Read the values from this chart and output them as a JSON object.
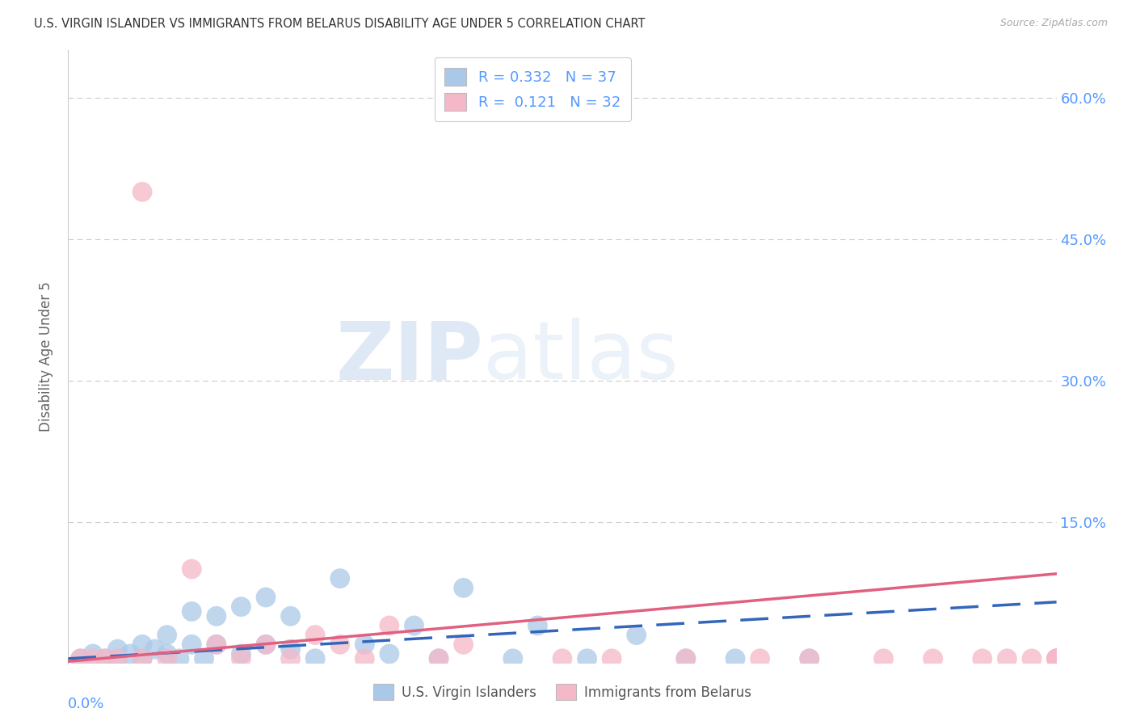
{
  "title": "U.S. VIRGIN ISLANDER VS IMMIGRANTS FROM BELARUS DISABILITY AGE UNDER 5 CORRELATION CHART",
  "source": "Source: ZipAtlas.com",
  "ylabel": "Disability Age Under 5",
  "xlim": [
    0.0,
    0.04
  ],
  "ylim": [
    0.0,
    0.65
  ],
  "ytick_vals": [
    0.0,
    0.15,
    0.3,
    0.45,
    0.6
  ],
  "right_ytick_labels": [
    "",
    "15.0%",
    "30.0%",
    "45.0%",
    "60.0%"
  ],
  "watermark_zip": "ZIP",
  "watermark_atlas": "atlas",
  "legend_blue_R": "0.332",
  "legend_blue_N": "37",
  "legend_pink_R": "0.121",
  "legend_pink_N": "32",
  "blue_color": "#aac9e8",
  "pink_color": "#f5b8c8",
  "blue_line_color": "#3366bb",
  "pink_line_color": "#e06080",
  "right_axis_color": "#5599ff",
  "grid_color": "#cccccc",
  "background_color": "#ffffff",
  "title_fontsize": 10.5,
  "source_fontsize": 9,
  "blue_scatter_x": [
    0.0005,
    0.001,
    0.0015,
    0.002,
    0.002,
    0.0025,
    0.003,
    0.003,
    0.0035,
    0.004,
    0.004,
    0.0045,
    0.005,
    0.005,
    0.0055,
    0.006,
    0.006,
    0.007,
    0.007,
    0.008,
    0.008,
    0.009,
    0.009,
    0.01,
    0.011,
    0.012,
    0.013,
    0.014,
    0.015,
    0.016,
    0.018,
    0.019,
    0.021,
    0.023,
    0.025,
    0.027,
    0.03
  ],
  "blue_scatter_y": [
    0.005,
    0.01,
    0.005,
    0.015,
    0.005,
    0.01,
    0.02,
    0.005,
    0.015,
    0.03,
    0.01,
    0.005,
    0.055,
    0.02,
    0.005,
    0.05,
    0.02,
    0.06,
    0.01,
    0.07,
    0.02,
    0.05,
    0.015,
    0.005,
    0.09,
    0.02,
    0.01,
    0.04,
    0.005,
    0.08,
    0.005,
    0.04,
    0.005,
    0.03,
    0.005,
    0.005,
    0.005
  ],
  "pink_scatter_x": [
    0.0005,
    0.001,
    0.0015,
    0.002,
    0.003,
    0.003,
    0.004,
    0.005,
    0.006,
    0.007,
    0.008,
    0.009,
    0.01,
    0.011,
    0.012,
    0.013,
    0.015,
    0.016,
    0.02,
    0.022,
    0.025,
    0.028,
    0.03,
    0.033,
    0.035,
    0.037,
    0.038,
    0.039,
    0.04,
    0.04,
    0.04,
    0.04
  ],
  "pink_scatter_y": [
    0.005,
    0.005,
    0.005,
    0.005,
    0.5,
    0.005,
    0.005,
    0.1,
    0.02,
    0.005,
    0.02,
    0.005,
    0.03,
    0.02,
    0.005,
    0.04,
    0.005,
    0.02,
    0.005,
    0.005,
    0.005,
    0.005,
    0.005,
    0.005,
    0.005,
    0.005,
    0.005,
    0.005,
    0.005,
    0.005,
    0.005,
    0.005
  ],
  "blue_trend_x": [
    0.0,
    0.04
  ],
  "blue_trend_y": [
    0.005,
    0.065
  ],
  "pink_trend_x": [
    0.0,
    0.04
  ],
  "pink_trend_y": [
    0.002,
    0.095
  ]
}
